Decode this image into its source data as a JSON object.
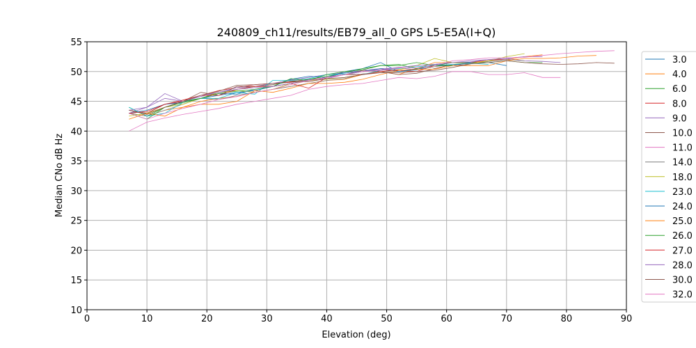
{
  "chart_data": {
    "type": "line",
    "title": "240809_ch11/results/EB79_all_0 GPS L5-E5A(I+Q)",
    "xlabel": "Elevation (deg)",
    "ylabel": "Median CNo dB Hz",
    "xlim": [
      0,
      90
    ],
    "ylim": [
      10,
      55
    ],
    "xticks": [
      0,
      10,
      20,
      30,
      40,
      50,
      60,
      70,
      80,
      90
    ],
    "yticks": [
      10,
      15,
      20,
      25,
      30,
      35,
      40,
      45,
      50,
      55
    ],
    "grid": true,
    "legend_placement": "outside-right",
    "x_start": 7,
    "x_step": 3,
    "series": [
      {
        "name": "3.0",
        "color": "#1f77b4",
        "values": [
          43.5,
          43,
          44.5,
          45,
          45.5,
          46,
          46.5,
          46.8,
          47.5,
          48,
          48.5,
          49,
          50,
          50.5,
          51.5,
          50,
          50.5,
          51,
          51,
          51.5,
          51.5,
          51
        ]
      },
      {
        "name": "4.0",
        "color": "#ff7f0e",
        "values": [
          43,
          42.5,
          43.5,
          44,
          45,
          45.5,
          45.8,
          46.5,
          47,
          47.5,
          48,
          48.5,
          48.7,
          49.5,
          50,
          49.5,
          50.5,
          51.5,
          51.5,
          51.5,
          51.8,
          52,
          52.5,
          52.8
        ]
      },
      {
        "name": "6.0",
        "color": "#2ca02c",
        "values": [
          44,
          42.5,
          44,
          45,
          45.5,
          46.5,
          47,
          47.5,
          47.8,
          48.3,
          48.7,
          49.2,
          49.8,
          50.5,
          51,
          51.2,
          50.5,
          51,
          51.5,
          51.5,
          51.5,
          51.8,
          51.5,
          51.5
        ]
      },
      {
        "name": "8.0",
        "color": "#d62728",
        "values": [
          43.5,
          43,
          44.5,
          45,
          46,
          46.8,
          47.3,
          47.8,
          48,
          48.2,
          48.5,
          49,
          49.5,
          50,
          50.3,
          50.2,
          50,
          51,
          51,
          51.5,
          52,
          52
        ]
      },
      {
        "name": "9.0",
        "color": "#9467bd",
        "values": [
          43,
          44,
          46.3,
          45,
          45.8,
          46.5,
          47.3,
          47.5,
          48,
          48.6,
          49,
          49.5,
          49.8,
          50.2,
          50.5,
          50.6,
          50.3,
          51.2,
          51.5,
          51.6,
          52,
          52.2,
          51.8,
          51.7,
          51.5
        ]
      },
      {
        "name": "10.0",
        "color": "#8c564b",
        "values": [
          43.5,
          43,
          44,
          45,
          46.5,
          46,
          47.5,
          47.5,
          47.8,
          48.4,
          48.6,
          49,
          49.5,
          50.2,
          50,
          49.5,
          49.7,
          50.5,
          51.2,
          51
        ]
      },
      {
        "name": "11.0",
        "color": "#e377c2",
        "values": [
          40,
          41.5,
          42.2,
          42.8,
          43.3,
          43.8,
          44.5,
          45,
          45.5,
          46,
          47,
          47.5,
          47.8,
          48,
          48.5,
          49,
          48.8,
          49.2,
          50,
          50,
          49.5,
          49.5,
          49.8,
          49,
          49
        ]
      },
      {
        "name": "14.0",
        "color": "#7f7f7f",
        "values": [
          43,
          42.5,
          43.5,
          44.5,
          45.5,
          45.3,
          46,
          46.5,
          47,
          47.5,
          48,
          48.5,
          48.8,
          49.6,
          49.8,
          50,
          50.3,
          50.8,
          51.2,
          51.3,
          51.7,
          52,
          51.8
        ]
      },
      {
        "name": "18.0",
        "color": "#bcbd22",
        "values": [
          42.5,
          43,
          44,
          44.5,
          45.5,
          46.5,
          46.8,
          46.5,
          47,
          48,
          48.5,
          48.7,
          49,
          49.5,
          50,
          50.3,
          51,
          52.2,
          51.5,
          51.3,
          51.8,
          52.5,
          53
        ]
      },
      {
        "name": "23.0",
        "color": "#17becf",
        "values": [
          44,
          42.5,
          43,
          44.8,
          45.5,
          45.5,
          46.5,
          46.2,
          48.5,
          48.5,
          48.8,
          49.5,
          49.6,
          49.5,
          50.2,
          50.5,
          50.8,
          51,
          51.2,
          51.4,
          51.2
        ]
      },
      {
        "name": "24.0",
        "color": "#1f77b4",
        "values": [
          43,
          43.5,
          44.5,
          44.8,
          45.5,
          46.3,
          46.2,
          47,
          47.5,
          48.7,
          49.2,
          49,
          49.8,
          50,
          50.5,
          50,
          50.3,
          51.2,
          51,
          51.5
        ]
      },
      {
        "name": "25.0",
        "color": "#ff7f0e",
        "values": [
          42,
          43,
          42.5,
          44,
          44.5,
          44.5,
          45,
          46.8,
          46.5,
          47.2,
          48,
          48,
          48.2,
          48.7,
          49.5,
          50.2,
          50.4,
          50.4,
          51,
          51,
          51,
          51.8,
          52.2,
          52.2,
          52.3,
          52.6,
          52.7
        ]
      },
      {
        "name": "26.0",
        "color": "#2ca02c",
        "values": [
          43,
          42,
          44,
          44.8,
          45.5,
          46.3,
          46.7,
          47,
          47.5,
          48.8,
          48.5,
          49.5,
          50,
          50.3,
          51,
          51,
          51.5,
          51,
          51
        ]
      },
      {
        "name": "27.0",
        "color": "#d62728",
        "values": [
          43,
          43.3,
          44.5,
          45.2,
          46,
          46,
          47,
          47.5,
          47.5,
          48,
          47.2,
          49,
          49.5,
          49.5,
          50,
          50.3
        ]
      },
      {
        "name": "28.0",
        "color": "#9467bd",
        "values": [
          43.5,
          44,
          45.5,
          45,
          46,
          46.5,
          47,
          47.3,
          47.5,
          48,
          48.6,
          48.8,
          49.5,
          50,
          50.3,
          50.7,
          51,
          51.2,
          51.5,
          51.8,
          52,
          52.2,
          52.5,
          52.5
        ]
      },
      {
        "name": "30.0",
        "color": "#8c564b",
        "values": [
          43.5,
          42.8,
          44,
          45,
          46,
          46.7,
          47.7,
          47.8,
          48,
          48.3,
          48.3,
          48.8,
          49,
          49.5,
          49.8,
          49.8,
          50,
          50.2,
          50.7,
          51.3,
          51.5,
          51.8,
          51.5,
          51.3,
          51.2,
          51.3,
          51.5,
          51.4
        ]
      },
      {
        "name": "32.0",
        "color": "#e377c2",
        "values": [
          43,
          42,
          43,
          43.8,
          44.5,
          45.3,
          45.8,
          46.5,
          47,
          47.8,
          48.5,
          49,
          49.5,
          50,
          50.2,
          50.6,
          50.6,
          51,
          51.8,
          52,
          52.3,
          52.3,
          52.4,
          52.7,
          53,
          53.2,
          53.4,
          53.5
        ]
      }
    ]
  }
}
